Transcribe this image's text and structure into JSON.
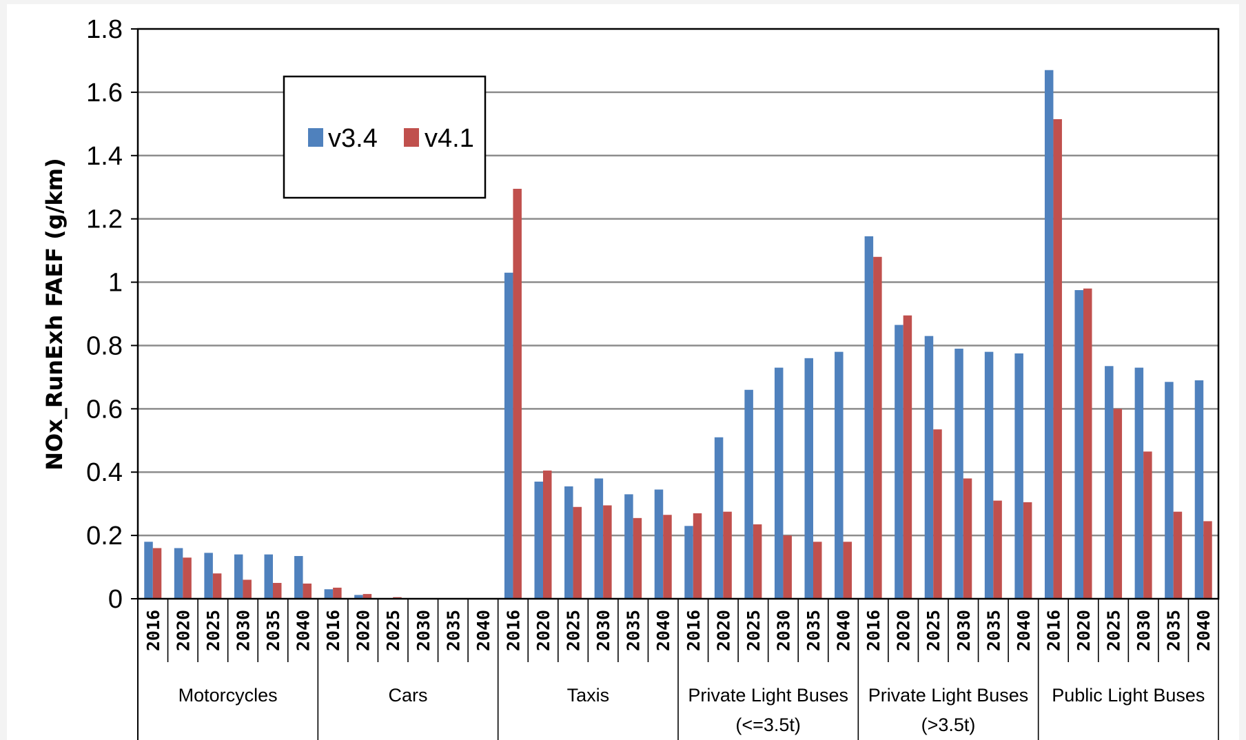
{
  "chart_data": {
    "type": "bar",
    "ylabel": "NOx_RunExh FAEF (g/km)",
    "ylim": [
      0,
      1.8
    ],
    "ytick_step": 0.2,
    "ytick_labels": [
      "0",
      "0.2",
      "0.4",
      "0.6",
      "0.8",
      "1",
      "1.2",
      "1.4",
      "1.6",
      "1.8"
    ],
    "grid": true,
    "legend_position": "top-left",
    "groups": [
      {
        "label": "Motorcycles",
        "label2": ""
      },
      {
        "label": "Cars",
        "label2": ""
      },
      {
        "label": "Taxis",
        "label2": ""
      },
      {
        "label": "Private Light Buses",
        "label2": "(<=3.5t)"
      },
      {
        "label": "Private Light Buses",
        "label2": "(>3.5t)"
      },
      {
        "label": "Public Light Buses",
        "label2": ""
      }
    ],
    "years": [
      "2016",
      "2020",
      "2025",
      "2030",
      "2035",
      "2040"
    ],
    "series": [
      {
        "name": "v3.4",
        "color": "#4F81BD",
        "values": [
          0.18,
          0.16,
          0.145,
          0.14,
          0.14,
          0.135,
          0.03,
          0.012,
          0,
          0,
          0,
          0,
          1.03,
          0.37,
          0.355,
          0.38,
          0.33,
          0.345,
          0.23,
          0.51,
          0.66,
          0.73,
          0.76,
          0.78,
          1.145,
          0.865,
          0.83,
          0.79,
          0.78,
          0.775,
          1.67,
          0.975,
          0.735,
          0.73,
          0.685,
          0.69
        ]
      },
      {
        "name": "v4.1",
        "color": "#C0504D",
        "values": [
          0.16,
          0.13,
          0.08,
          0.06,
          0.05,
          0.048,
          0.035,
          0.015,
          0.005,
          0,
          0,
          0,
          1.295,
          0.405,
          0.29,
          0.295,
          0.255,
          0.265,
          0.27,
          0.275,
          0.235,
          0.2,
          0.18,
          0.18,
          1.08,
          0.895,
          0.535,
          0.38,
          0.31,
          0.305,
          1.515,
          0.98,
          0.6,
          0.465,
          0.275,
          0.245
        ]
      }
    ]
  }
}
